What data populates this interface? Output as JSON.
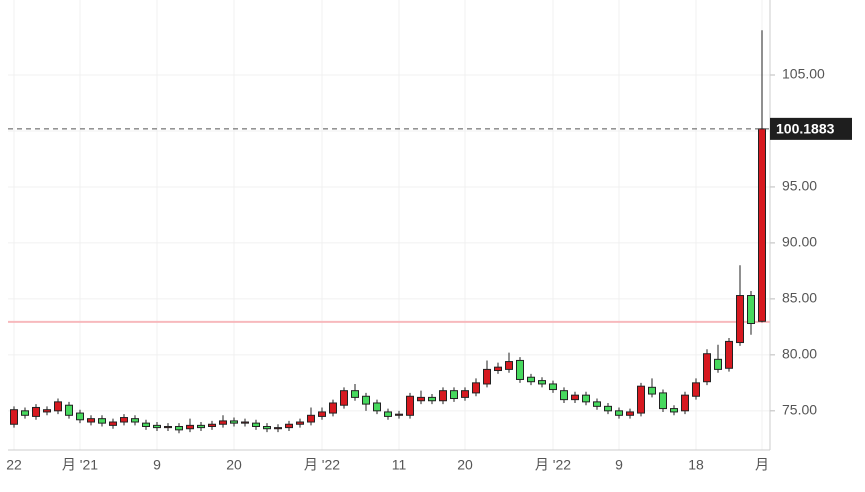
{
  "chart_data": {
    "type": "candlestick",
    "categories": [
      "22",
      null,
      null,
      null,
      null,
      null,
      "月 '21",
      null,
      null,
      null,
      null,
      null,
      null,
      "9",
      null,
      null,
      null,
      null,
      null,
      null,
      "20",
      null,
      null,
      null,
      null,
      null,
      null,
      null,
      "月 '22",
      null,
      null,
      null,
      null,
      null,
      null,
      "11",
      null,
      null,
      null,
      null,
      null,
      "20",
      null,
      null,
      null,
      null,
      null,
      null,
      null,
      "月 '22",
      null,
      null,
      null,
      null,
      null,
      "9",
      null,
      null,
      null,
      null,
      null,
      null,
      "18",
      null,
      null,
      null,
      null,
      null,
      "月"
    ],
    "open": [
      73.8,
      75.0,
      74.5,
      74.9,
      75.0,
      75.5,
      74.8,
      74.0,
      74.3,
      73.7,
      74.0,
      74.3,
      73.9,
      73.7,
      73.5,
      73.6,
      73.4,
      73.7,
      73.6,
      73.8,
      74.1,
      73.9,
      73.9,
      73.6,
      73.4,
      73.5,
      73.8,
      74.0,
      74.5,
      74.8,
      75.5,
      76.8,
      76.3,
      75.7,
      74.9,
      74.6,
      74.6,
      75.9,
      76.2,
      75.9,
      76.8,
      76.2,
      76.6,
      77.4,
      78.6,
      78.7,
      79.5,
      78.0,
      77.7,
      77.4,
      76.8,
      76.0,
      76.4,
      75.8,
      75.4,
      75.0,
      74.6,
      74.8,
      77.1,
      76.6,
      75.2,
      75.0,
      76.3,
      77.6,
      79.6,
      78.8,
      81.1,
      85.3,
      83.0
    ],
    "high": [
      75.4,
      75.3,
      75.6,
      75.4,
      76.1,
      75.8,
      75.1,
      74.6,
      74.6,
      74.3,
      74.7,
      74.6,
      74.2,
      74.0,
      73.9,
      73.9,
      74.3,
      74.0,
      74.1,
      74.6,
      74.4,
      74.3,
      74.2,
      73.9,
      73.8,
      74.1,
      74.3,
      75.3,
      75.3,
      76.0,
      77.1,
      77.4,
      76.6,
      76.0,
      75.2,
      75.0,
      76.6,
      76.8,
      76.5,
      77.1,
      77.1,
      77.1,
      77.9,
      79.5,
      79.3,
      80.2,
      79.8,
      78.3,
      78.0,
      77.7,
      77.1,
      76.7,
      76.7,
      76.1,
      75.7,
      75.3,
      75.2,
      77.5,
      77.9,
      76.9,
      75.5,
      76.7,
      77.9,
      80.5,
      80.9,
      81.5,
      88.0,
      85.7,
      109.0
    ],
    "low": [
      73.5,
      74.3,
      74.2,
      74.6,
      74.7,
      74.3,
      73.9,
      73.7,
      73.6,
      73.4,
      73.7,
      73.7,
      73.3,
      73.2,
      73.2,
      73.0,
      73.1,
      73.2,
      73.3,
      73.5,
      73.6,
      73.6,
      73.3,
      73.1,
      73.1,
      73.2,
      73.5,
      73.7,
      74.2,
      74.5,
      75.2,
      75.9,
      75.0,
      74.7,
      74.2,
      74.3,
      74.3,
      75.6,
      75.6,
      75.6,
      75.8,
      75.9,
      76.3,
      77.1,
      78.3,
      78.4,
      77.5,
      77.3,
      77.1,
      76.6,
      75.7,
      75.7,
      75.5,
      75.1,
      74.7,
      74.3,
      74.3,
      74.5,
      76.2,
      74.9,
      74.6,
      74.7,
      76.0,
      77.3,
      78.4,
      78.5,
      80.8,
      81.8,
      82.9
    ],
    "close": [
      75.1,
      74.6,
      75.3,
      75.1,
      75.8,
      74.6,
      74.2,
      74.3,
      73.9,
      74.0,
      74.4,
      74.0,
      73.6,
      73.5,
      73.6,
      73.3,
      73.7,
      73.5,
      73.8,
      74.1,
      73.9,
      74.0,
      73.6,
      73.4,
      73.5,
      73.8,
      74.0,
      74.6,
      74.9,
      75.7,
      76.8,
      76.2,
      75.6,
      75.0,
      74.5,
      74.7,
      76.3,
      76.2,
      75.9,
      76.8,
      76.1,
      76.8,
      77.5,
      78.7,
      78.9,
      79.4,
      77.8,
      77.6,
      77.4,
      76.9,
      76.0,
      76.4,
      75.8,
      75.4,
      75.0,
      74.6,
      74.9,
      77.2,
      76.5,
      75.2,
      74.9,
      76.4,
      77.5,
      80.1,
      78.7,
      81.2,
      85.3,
      82.8,
      100.1883
    ],
    "up_color": "#d71920",
    "down_color": "#47d95e",
    "ylim": [
      71.5,
      111.7
    ],
    "yticks": [
      {
        "value": 75,
        "label": "75.00"
      },
      {
        "value": 80,
        "label": "80.00"
      },
      {
        "value": 85,
        "label": "85.00"
      },
      {
        "value": 90,
        "label": "90.00"
      },
      {
        "value": 95,
        "label": "95.00"
      },
      {
        "value": 100,
        "label": "100.00"
      },
      {
        "value": 105,
        "label": "105.00"
      }
    ],
    "last_price": 100.1883,
    "last_price_label": "100.1883",
    "reference_line": 82.95,
    "grid": true
  }
}
